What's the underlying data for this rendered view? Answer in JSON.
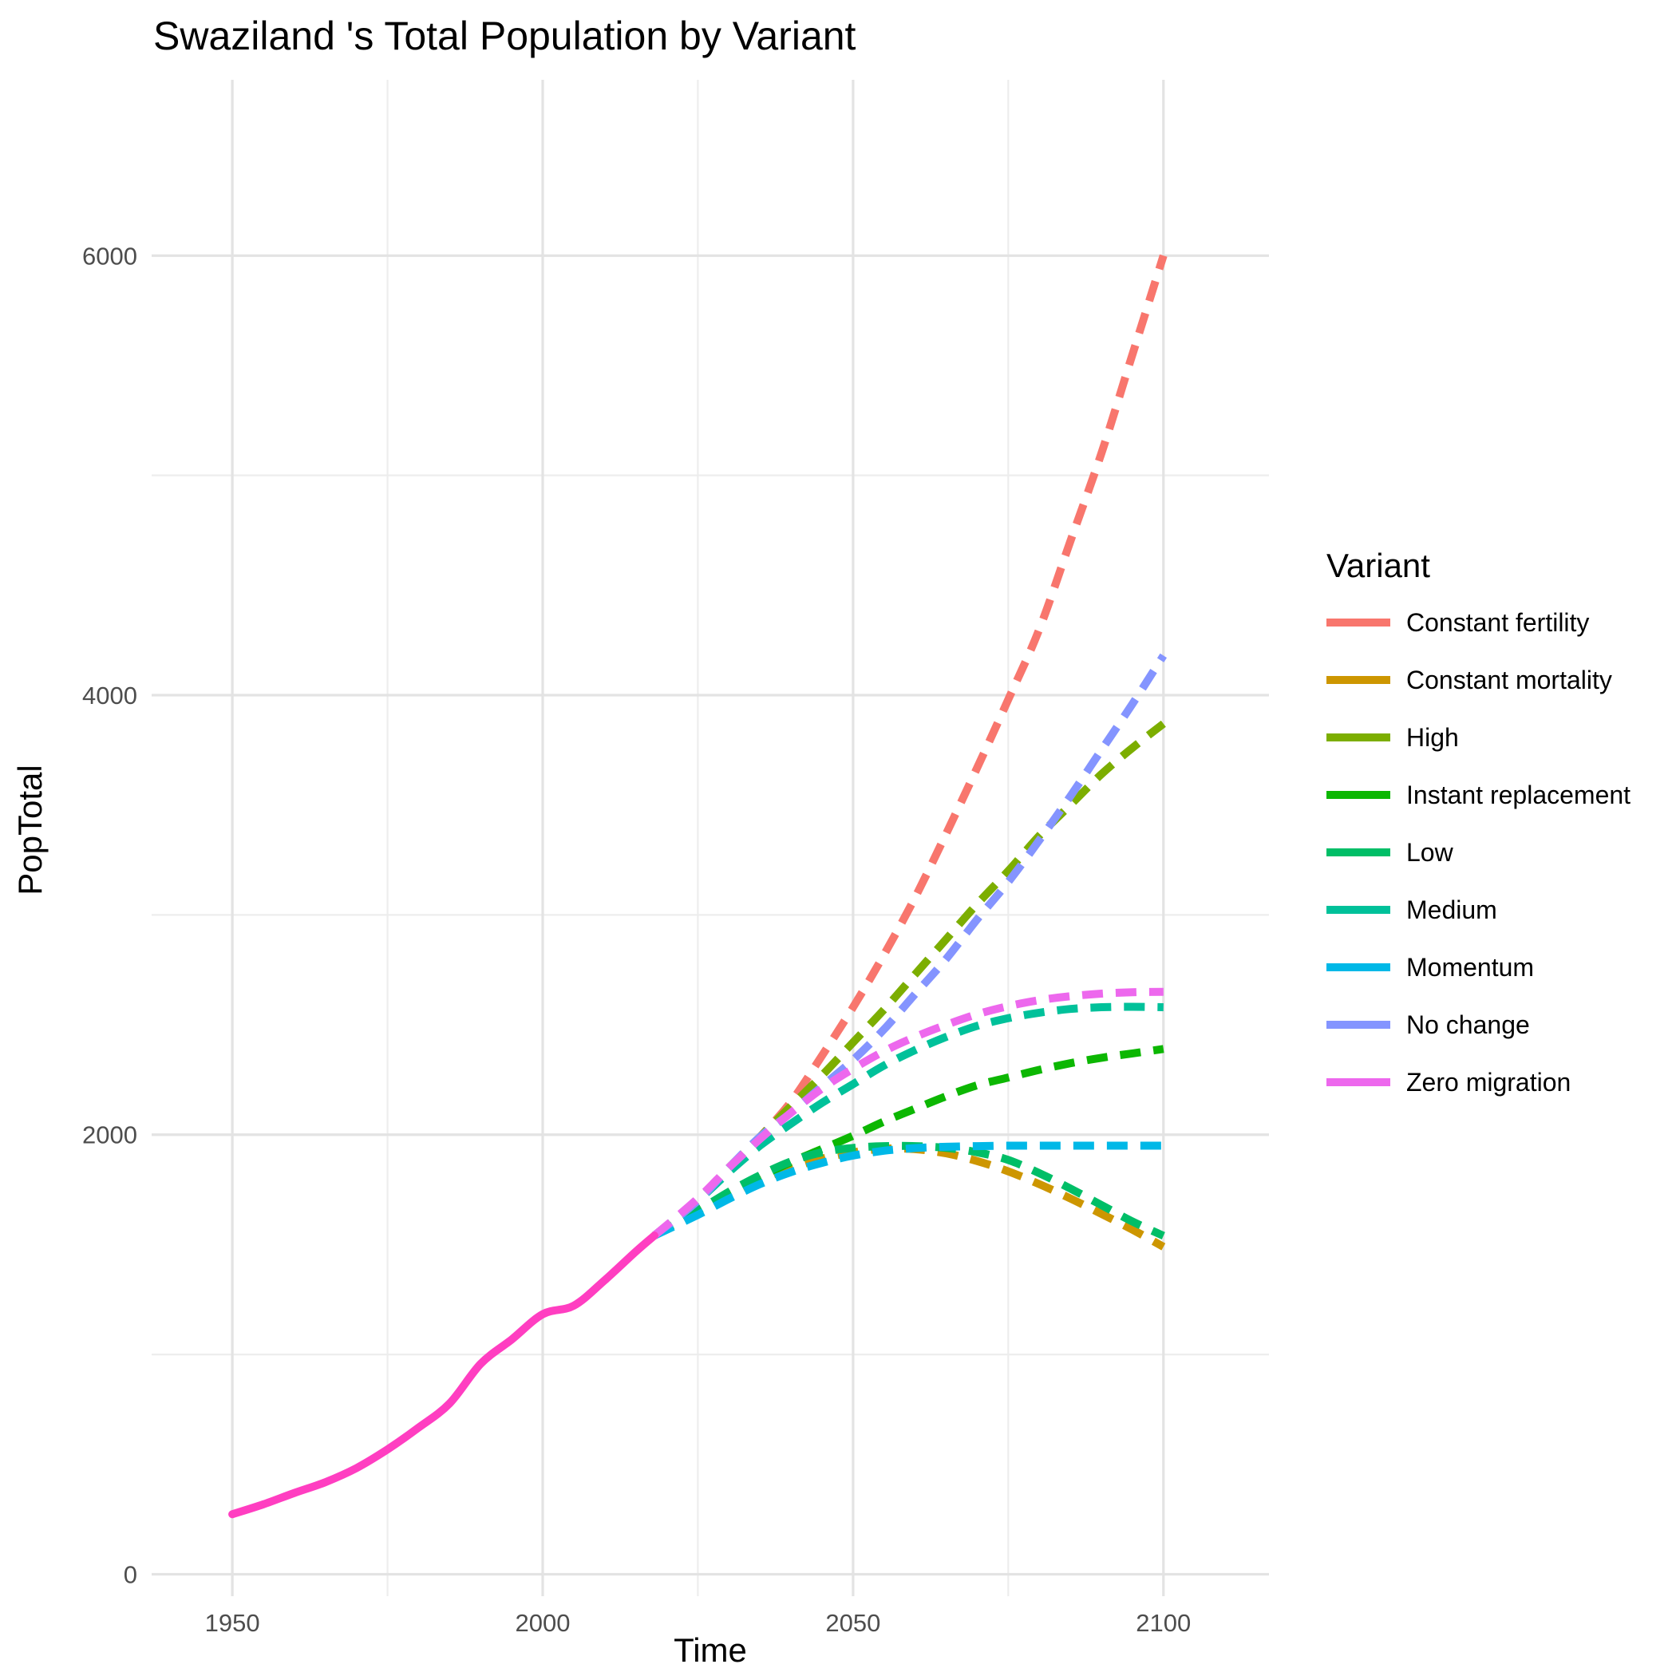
{
  "chart_data": {
    "type": "line",
    "title": "Swaziland 's Total Population by Variant",
    "xlabel": "Time",
    "ylabel": "PopTotal",
    "xlim": [
      1937,
      2117
    ],
    "ylim": [
      -100,
      6800
    ],
    "x_ticks": [
      1950,
      2000,
      2050,
      2100
    ],
    "x_minor_ticks": [
      1975,
      2025,
      2075
    ],
    "y_ticks": [
      0,
      2000,
      4000,
      6000
    ],
    "y_minor_ticks": [
      1000,
      3000,
      5000
    ],
    "grid": true,
    "legend": {
      "title": "Variant",
      "position": "right"
    },
    "historical": {
      "name": "",
      "style": "solid",
      "color": "#FF3EC1",
      "x": [
        1950,
        1955,
        1960,
        1965,
        1970,
        1975,
        1980,
        1985,
        1990,
        1995,
        2000,
        2005,
        2010,
        2015,
        2018
      ],
      "y": [
        273,
        318,
        370,
        419,
        483,
        568,
        667,
        777,
        957,
        1068,
        1183,
        1222,
        1338,
        1468,
        1541
      ]
    },
    "series": [
      {
        "name": "Constant fertility",
        "color": "#F8766D",
        "x": [
          2018,
          2025,
          2030,
          2035,
          2040,
          2045,
          2050,
          2055,
          2060,
          2065,
          2070,
          2075,
          2080,
          2085,
          2090,
          2095,
          2100
        ],
        "y": [
          1541,
          1700,
          1850,
          1990,
          2150,
          2360,
          2580,
          2820,
          3080,
          3370,
          3670,
          3980,
          4300,
          4700,
          5100,
          5550,
          6000
        ]
      },
      {
        "name": "Constant mortality",
        "color": "#CD9600",
        "x": [
          2018,
          2025,
          2030,
          2035,
          2040,
          2045,
          2050,
          2055,
          2060,
          2065,
          2070,
          2075,
          2080,
          2085,
          2090,
          2095,
          2100
        ],
        "y": [
          1541,
          1655,
          1728,
          1793,
          1848,
          1891,
          1920,
          1936,
          1934,
          1915,
          1880,
          1833,
          1775,
          1710,
          1640,
          1568,
          1490
        ]
      },
      {
        "name": "High",
        "color": "#7CAE00",
        "x": [
          2018,
          2025,
          2030,
          2035,
          2040,
          2045,
          2050,
          2055,
          2060,
          2065,
          2070,
          2075,
          2080,
          2085,
          2090,
          2095,
          2100
        ],
        "y": [
          1541,
          1705,
          1850,
          1990,
          2130,
          2270,
          2420,
          2570,
          2730,
          2890,
          3050,
          3200,
          3360,
          3500,
          3640,
          3760,
          3870
        ]
      },
      {
        "name": "Instant replacement",
        "color": "#0CB702",
        "x": [
          2018,
          2025,
          2030,
          2035,
          2040,
          2045,
          2050,
          2055,
          2060,
          2065,
          2070,
          2075,
          2080,
          2085,
          2090,
          2095,
          2100
        ],
        "y": [
          1541,
          1655,
          1735,
          1808,
          1875,
          1935,
          1995,
          2060,
          2118,
          2175,
          2225,
          2260,
          2295,
          2325,
          2350,
          2370,
          2390
        ]
      },
      {
        "name": "Low",
        "color": "#00BE67",
        "x": [
          2018,
          2025,
          2030,
          2035,
          2040,
          2045,
          2050,
          2055,
          2060,
          2065,
          2070,
          2075,
          2080,
          2085,
          2090,
          2095,
          2100
        ],
        "y": [
          1541,
          1655,
          1740,
          1815,
          1878,
          1920,
          1940,
          1948,
          1948,
          1940,
          1920,
          1885,
          1825,
          1755,
          1680,
          1605,
          1540
        ]
      },
      {
        "name": "Medium",
        "color": "#00C19A",
        "x": [
          2018,
          2025,
          2030,
          2035,
          2040,
          2045,
          2050,
          2055,
          2060,
          2065,
          2070,
          2075,
          2080,
          2085,
          2090,
          2095,
          2100
        ],
        "y": [
          1541,
          1700,
          1830,
          1950,
          2050,
          2145,
          2230,
          2315,
          2385,
          2445,
          2495,
          2530,
          2555,
          2572,
          2580,
          2582,
          2580
        ]
      },
      {
        "name": "Momentum",
        "color": "#00B8E7",
        "x": [
          2018,
          2025,
          2030,
          2035,
          2040,
          2045,
          2050,
          2055,
          2060,
          2065,
          2070,
          2075,
          2080,
          2085,
          2090,
          2095,
          2100
        ],
        "y": [
          1541,
          1635,
          1708,
          1775,
          1830,
          1872,
          1905,
          1927,
          1939,
          1945,
          1948,
          1950,
          1950,
          1950,
          1950,
          1950,
          1950
        ]
      },
      {
        "name": "No change",
        "color": "#8494FF",
        "x": [
          2018,
          2025,
          2030,
          2035,
          2040,
          2045,
          2050,
          2055,
          2060,
          2065,
          2070,
          2075,
          2080,
          2085,
          2090,
          2095,
          2100
        ],
        "y": [
          1541,
          1700,
          1850,
          1990,
          2100,
          2220,
          2340,
          2480,
          2640,
          2800,
          2980,
          3150,
          3340,
          3540,
          3750,
          3960,
          4180
        ]
      },
      {
        "name": "Zero migration",
        "color": "#ED68ED",
        "x": [
          2018,
          2025,
          2030,
          2035,
          2040,
          2045,
          2050,
          2055,
          2060,
          2065,
          2070,
          2075,
          2080,
          2085,
          2090,
          2095,
          2100
        ],
        "y": [
          1541,
          1710,
          1850,
          1980,
          2100,
          2210,
          2300,
          2380,
          2445,
          2500,
          2548,
          2585,
          2612,
          2630,
          2642,
          2648,
          2650
        ]
      }
    ]
  }
}
